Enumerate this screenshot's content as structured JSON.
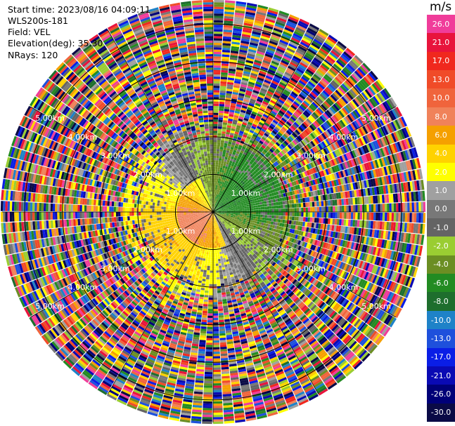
{
  "info": {
    "start_time": "Start time: 2023/08/16 04:09:11",
    "instrument": "WLS200s-181",
    "field": "Field: VEL",
    "elevation": "Elevation(deg): 35.30",
    "nrays": "NRays: 120"
  },
  "colorbar": {
    "title": "m/s",
    "bins": [
      {
        "label": "26.0",
        "color": "#f03c9a"
      },
      {
        "label": "21.0",
        "color": "#e8143c"
      },
      {
        "label": "17.0",
        "color": "#f0281e"
      },
      {
        "label": "13.0",
        "color": "#f04b28"
      },
      {
        "label": "10.0",
        "color": "#f0643c"
      },
      {
        "label": "8.0",
        "color": "#f0825a"
      },
      {
        "label": "6.0",
        "color": "#f5a000"
      },
      {
        "label": "4.0",
        "color": "#ffd200"
      },
      {
        "label": "2.0",
        "color": "#ffff00"
      },
      {
        "label": "1.0",
        "color": "#a0a0a0"
      },
      {
        "label": "0.0",
        "color": "#787878"
      },
      {
        "label": "-1.0",
        "color": "#646464"
      },
      {
        "label": "-2.0",
        "color": "#9acd32"
      },
      {
        "label": "-4.0",
        "color": "#6b8e23"
      },
      {
        "label": "-6.0",
        "color": "#228b22"
      },
      {
        "label": "-8.0",
        "color": "#1e6e2d"
      },
      {
        "label": "-10.0",
        "color": "#1e82c8"
      },
      {
        "label": "-13.0",
        "color": "#1e50dc"
      },
      {
        "label": "-17.0",
        "color": "#0a1ee6"
      },
      {
        "label": "-21.0",
        "color": "#0a0ab4"
      },
      {
        "label": "-26.0",
        "color": "#000078"
      },
      {
        "label": "-30.0",
        "color": "#0a0a46"
      }
    ]
  },
  "chart_data": {
    "type": "heatmap",
    "field": "VEL",
    "units": "m/s",
    "range_rings_km": [
      1.0,
      2.0,
      3.0,
      4.0,
      5.0
    ],
    "range_labels": [
      "1.00km",
      "2.00km",
      "3.00km",
      "4.00km",
      "5.00km"
    ],
    "n_rays": 120,
    "elevation_deg": 35.3,
    "color_scale_min": -30.0,
    "color_scale_max": 26.0,
    "max_range_km": 5.6
  }
}
